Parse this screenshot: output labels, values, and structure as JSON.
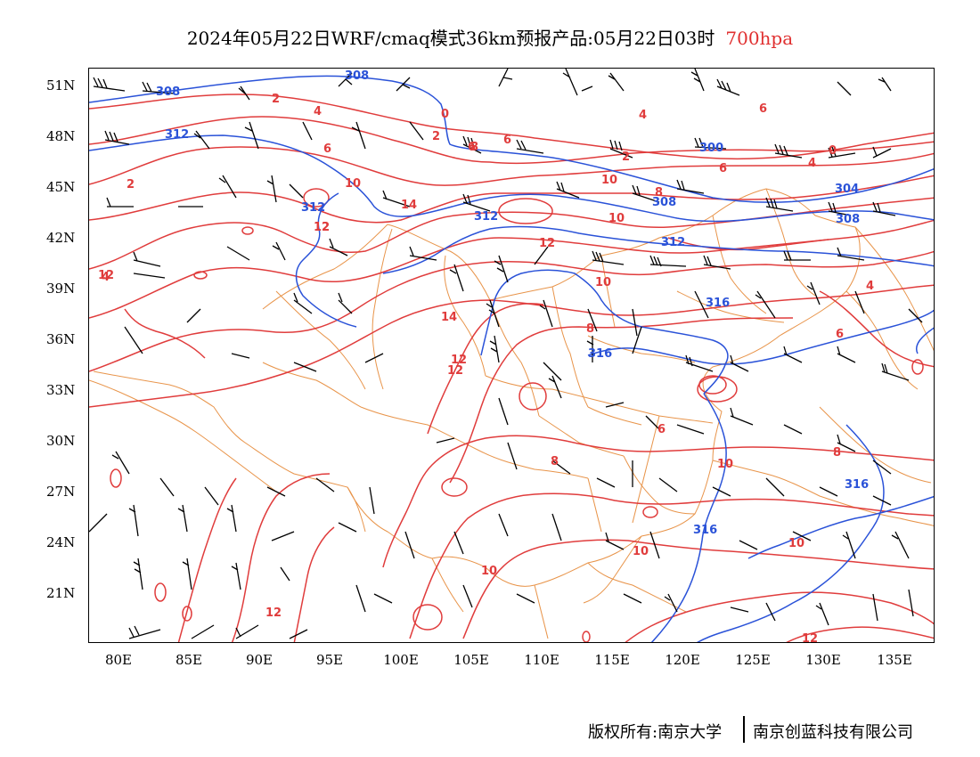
{
  "title": {
    "text": "2024年05月22日WRF/cmaq模式36km预报产品:05月22日03时",
    "level": "700hpa"
  },
  "colors": {
    "temperature": "#e03c3c",
    "height": "#2a52d8",
    "boundary": "#e8944a",
    "wind": "#000000"
  },
  "axes": {
    "lat_labels": [
      "51N",
      "48N",
      "45N",
      "42N",
      "39N",
      "36N",
      "33N",
      "30N",
      "27N",
      "24N",
      "21N"
    ],
    "lon_labels": [
      "80E",
      "85E",
      "90E",
      "95E",
      "100E",
      "105E",
      "110E",
      "115E",
      "120E",
      "125E",
      "130E",
      "135E"
    ]
  },
  "temperature_labels": [
    "2",
    "4",
    "6",
    "0",
    "6",
    "2",
    "6",
    "10",
    "4",
    "2",
    "6",
    "8",
    "10",
    "6",
    "4",
    "2",
    "8",
    "0",
    "12",
    "10",
    "14",
    "12",
    "12",
    "10",
    "14",
    "12",
    "6",
    "8",
    "12",
    "10",
    "8",
    "10",
    "10",
    "12",
    "6",
    "8",
    "4",
    "12",
    "10",
    "12",
    "4"
  ],
  "height_labels": [
    "308",
    "308",
    "312",
    "300",
    "304",
    "312",
    "308",
    "312",
    "308",
    "312",
    "316",
    "316",
    "316",
    "316"
  ],
  "footer": {
    "copyright": "版权所有:南京大学",
    "company": "南京创蓝科技有限公司"
  }
}
